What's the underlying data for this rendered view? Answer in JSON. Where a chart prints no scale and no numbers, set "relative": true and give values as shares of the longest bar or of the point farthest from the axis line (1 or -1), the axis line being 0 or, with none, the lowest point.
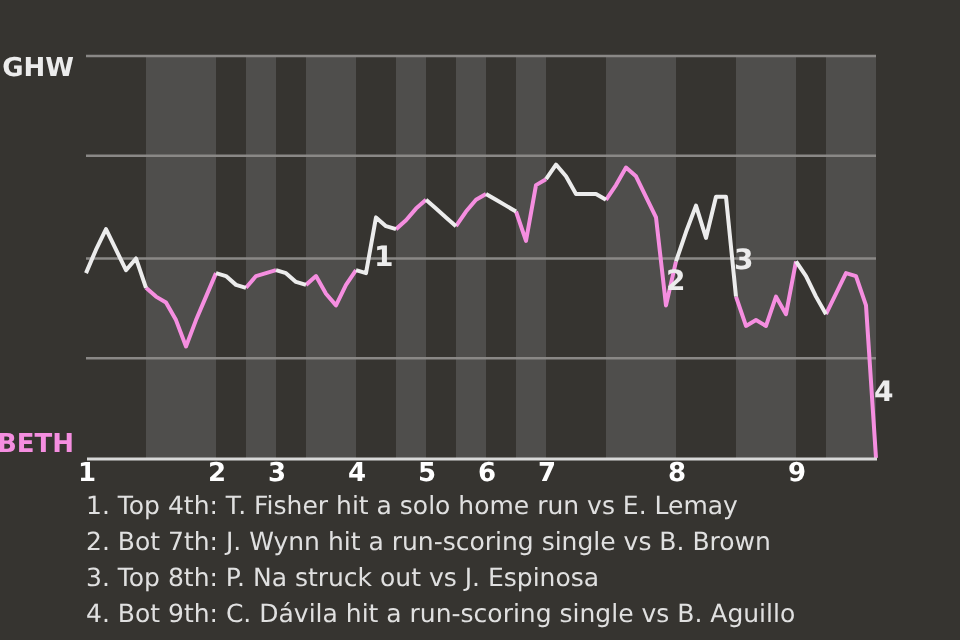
{
  "chart_data": {
    "type": "line",
    "relative": true,
    "categories": [
      "1",
      null,
      null,
      null,
      null,
      null,
      null,
      null,
      null,
      null,
      null,
      null,
      null,
      "2",
      null,
      null,
      null,
      null,
      null,
      "3",
      null,
      null,
      null,
      null,
      null,
      null,
      null,
      "4",
      null,
      null,
      null,
      null,
      null,
      null,
      "5",
      null,
      null,
      null,
      null,
      null,
      "6",
      null,
      null,
      null,
      null,
      null,
      "7",
      null,
      null,
      null,
      null,
      null,
      null,
      null,
      null,
      null,
      null,
      null,
      null,
      "8",
      null,
      null,
      null,
      null,
      null,
      null,
      null,
      null,
      null,
      null,
      null,
      "9",
      null,
      null,
      null,
      null,
      null,
      null,
      null,
      null
    ],
    "line_style": "solid",
    "series": [
      {
        "name": "BETH",
        "color": "#f58ee0",
        "values": [
          null,
          null,
          null,
          null,
          null,
          null,
          0.58,
          0.55,
          0.53,
          0.47,
          0.38,
          0.47,
          0.55,
          0.63,
          null,
          null,
          0.58,
          0.62,
          0.63,
          0.64,
          null,
          null,
          0.59,
          0.62,
          0.56,
          0.52,
          0.59,
          0.64,
          null,
          null,
          null,
          0.78,
          0.81,
          0.85,
          0.88,
          null,
          null,
          0.79,
          0.84,
          0.88,
          0.9,
          null,
          null,
          0.84,
          0.74,
          0.93,
          0.95,
          null,
          null,
          null,
          null,
          null,
          0.88,
          0.93,
          0.99,
          0.96,
          0.89,
          0.82,
          0.52,
          0.67,
          null,
          null,
          null,
          null,
          null,
          0.55,
          0.45,
          0.47,
          0.45,
          0.55,
          0.49,
          0.67,
          null,
          null,
          0.49,
          0.56,
          0.63,
          0.62,
          0.52,
          0
        ]
      },
      {
        "name": "GHW",
        "color": "#ececec",
        "values": [
          0.63,
          0.71,
          0.78,
          0.71,
          0.64,
          0.68,
          0.58,
          null,
          null,
          null,
          null,
          null,
          null,
          0.63,
          0.62,
          0.59,
          0.58,
          null,
          null,
          0.64,
          0.63,
          0.6,
          0.59,
          null,
          null,
          null,
          null,
          0.64,
          0.63,
          0.82,
          0.79,
          0.78,
          null,
          null,
          0.88,
          0.85,
          0.82,
          0.79,
          null,
          null,
          0.9,
          0.88,
          0.86,
          0.84,
          null,
          null,
          0.95,
          1,
          0.96,
          0.9,
          0.9,
          0.9,
          0.88,
          null,
          null,
          null,
          null,
          null,
          null,
          0.67,
          0.77,
          0.86,
          0.75,
          0.89,
          0.89,
          0.55,
          null,
          null,
          null,
          null,
          null,
          0.67,
          0.62,
          0.55,
          0.49,
          null,
          null,
          null,
          null,
          null
        ]
      }
    ],
    "ref_lines": [
      {
        "axis": "y",
        "value": 0.34,
        "color": "#8a8886"
      },
      {
        "axis": "y",
        "value": 0.68,
        "color": "#8a8886"
      },
      {
        "axis": "y",
        "value": 1.03,
        "color": "#8a8886"
      },
      {
        "axis": "y",
        "value": 1.37,
        "color": "#8a8886"
      }
    ],
    "annotations": [
      {
        "text": "1",
        "y": 0.68
      },
      {
        "text": "2",
        "y": 0.6
      },
      {
        "text": "3",
        "y": 0.67
      },
      {
        "text": "4",
        "y": 0.22
      },
      "1. Top 4th: T. Fisher hit a solo home run vs E. Lemay",
      "2. Bot 7th: J. Wynn hit a run-scoring single vs B. Brown",
      "3. Top 8th: P. Na struck out vs J. Espinosa",
      "4. Bot 9th: C. Dávila hit a run-scoring single vs B. Aguillo"
    ]
  }
}
